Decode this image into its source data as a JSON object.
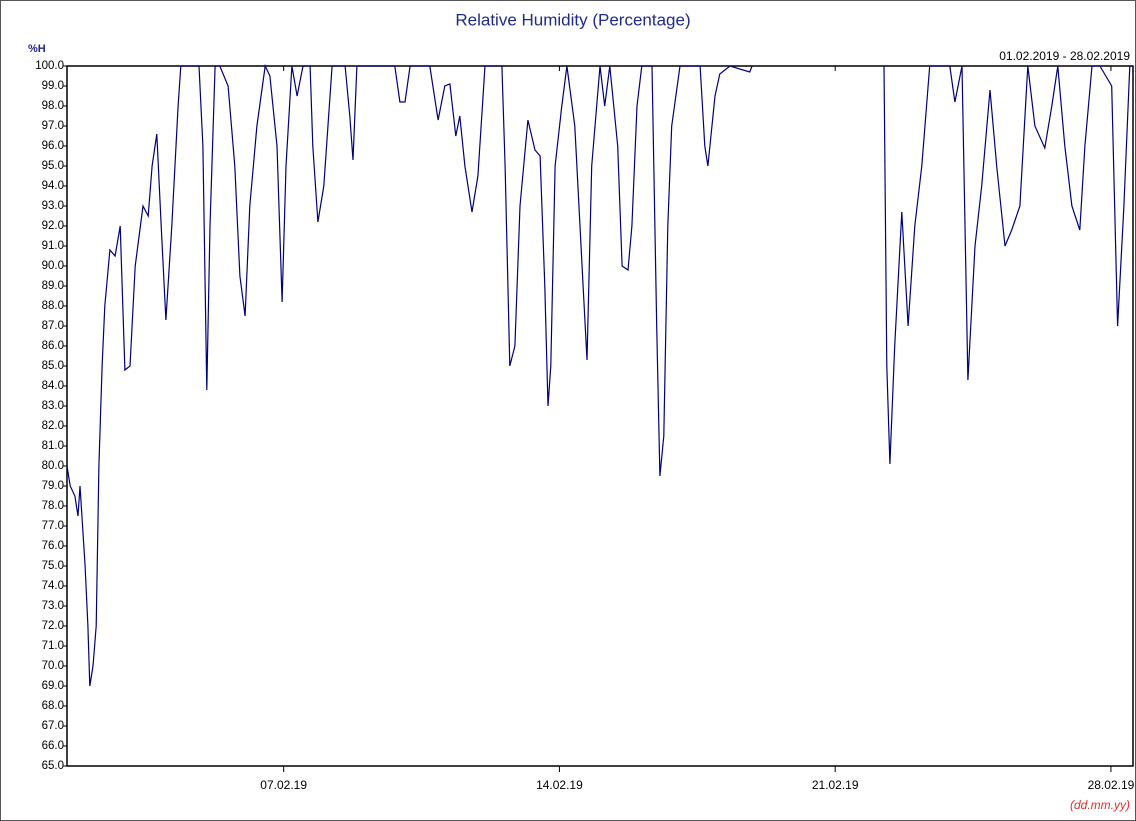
{
  "chart_data": {
    "type": "line",
    "title": "Relative Humidity (Percentage)",
    "y_label": "%H",
    "date_range": "01.02.2019 - 28.02.2019",
    "x_format": "(dd.mm.yy)",
    "color": "#00007f",
    "xlim": [
      1.5,
      28.56
    ],
    "xticks": [
      {
        "value": 7,
        "label": "07.02.19"
      },
      {
        "value": 14,
        "label": "14.02.19"
      },
      {
        "value": 21,
        "label": "21.02.19"
      },
      {
        "value": 28,
        "label": "28.02.19"
      }
    ],
    "ylim": [
      65,
      100
    ],
    "yticks": [
      {
        "value": 65,
        "label": "65.0"
      },
      {
        "value": 66,
        "label": "66.0"
      },
      {
        "value": 67,
        "label": "67.0"
      },
      {
        "value": 68,
        "label": "68.0"
      },
      {
        "value": 69,
        "label": "69.0"
      },
      {
        "value": 70,
        "label": "70.0"
      },
      {
        "value": 71,
        "label": "71.0"
      },
      {
        "value": 72,
        "label": "72.0"
      },
      {
        "value": 73,
        "label": "73.0"
      },
      {
        "value": 74,
        "label": "74.0"
      },
      {
        "value": 75,
        "label": "75.0"
      },
      {
        "value": 76,
        "label": "76.0"
      },
      {
        "value": 77,
        "label": "77.0"
      },
      {
        "value": 78,
        "label": "78.0"
      },
      {
        "value": 79,
        "label": "79.0"
      },
      {
        "value": 80,
        "label": "80.0"
      },
      {
        "value": 81,
        "label": "81.0"
      },
      {
        "value": 82,
        "label": "82.0"
      },
      {
        "value": 83,
        "label": "83.0"
      },
      {
        "value": 84,
        "label": "84.0"
      },
      {
        "value": 85,
        "label": "85.0"
      },
      {
        "value": 86,
        "label": "86.0"
      },
      {
        "value": 87,
        "label": "87.0"
      },
      {
        "value": 88,
        "label": "88.0"
      },
      {
        "value": 89,
        "label": "89.0"
      },
      {
        "value": 90,
        "label": "90.0"
      },
      {
        "value": 91,
        "label": "91.0"
      },
      {
        "value": 92,
        "label": "92.0"
      },
      {
        "value": 93,
        "label": "93.0"
      },
      {
        "value": 94,
        "label": "94.0"
      },
      {
        "value": 95,
        "label": "95.0"
      },
      {
        "value": 96,
        "label": "96.0"
      },
      {
        "value": 97,
        "label": "97.0"
      },
      {
        "value": 98,
        "label": "98.0"
      },
      {
        "value": 99,
        "label": "99.0"
      },
      {
        "value": 100,
        "label": "100.0"
      }
    ],
    "x": [
      1.5,
      1.58,
      1.7,
      1.78,
      1.83,
      1.96,
      2.03,
      2.08,
      2.16,
      2.24,
      2.31,
      2.39,
      2.46,
      2.59,
      2.72,
      2.85,
      2.97,
      3.1,
      3.23,
      3.43,
      3.56,
      3.66,
      3.78,
      3.89,
      4.01,
      4.16,
      4.32,
      4.39,
      4.85,
      4.95,
      5.05,
      5.13,
      5.26,
      5.38,
      5.59,
      5.76,
      5.89,
      6.02,
      6.14,
      6.32,
      6.53,
      6.65,
      6.83,
      6.96,
      7.06,
      7.21,
      7.34,
      7.49,
      7.67,
      7.74,
      7.87,
      8.02,
      8.23,
      8.56,
      8.68,
      8.76,
      8.86,
      9.82,
      9.95,
      10.08,
      10.21,
      10.71,
      10.92,
      11.09,
      11.22,
      11.37,
      11.47,
      11.6,
      11.78,
      11.93,
      12.11,
      12.54,
      12.62,
      12.74,
      12.87,
      13.0,
      13.2,
      13.38,
      13.51,
      13.63,
      13.71,
      13.78,
      13.89,
      14.06,
      14.19,
      14.39,
      14.6,
      14.7,
      14.82,
      15.03,
      15.15,
      15.28,
      15.48,
      15.59,
      15.74,
      15.84,
      15.97,
      16.09,
      16.35,
      16.47,
      16.55,
      16.65,
      16.75,
      16.85,
      17.06,
      17.57,
      17.69,
      17.77,
      17.95,
      18.07,
      18.33,
      18.83,
      18.89,
      19.5,
      22.24,
      22.31,
      22.39,
      22.51,
      22.69,
      22.85,
      23.02,
      23.2,
      23.4,
      23.91,
      24.04,
      24.22,
      24.37,
      24.55,
      24.72,
      24.93,
      25.1,
      25.31,
      25.48,
      25.69,
      25.89,
      26.07,
      26.32,
      26.5,
      26.65,
      26.83,
      27.01,
      27.21,
      27.34,
      27.52,
      27.72,
      28.02,
      28.17,
      28.33,
      28.48,
      28.56
    ],
    "values": [
      80,
      79,
      78.5,
      77.5,
      79,
      75,
      72,
      69,
      70,
      72,
      80,
      85,
      88,
      90.8,
      90.5,
      92,
      84.8,
      85,
      90,
      93,
      92.5,
      95,
      96.6,
      92,
      87.3,
      92,
      98,
      100,
      100,
      96,
      83.8,
      92,
      100,
      100,
      99,
      95,
      89.5,
      87.5,
      93,
      97,
      100,
      99.5,
      96,
      88.2,
      95,
      100,
      98.5,
      100,
      100,
      96,
      92.2,
      94,
      100,
      100,
      97.5,
      95.3,
      100,
      100,
      98.2,
      98.2,
      100,
      100,
      97.3,
      99,
      99.1,
      96.5,
      97.5,
      95,
      92.7,
      94.5,
      100,
      100,
      95,
      85,
      86,
      93,
      97.3,
      95.8,
      95.5,
      89,
      83,
      85,
      95,
      98,
      100,
      97,
      89,
      85.3,
      95,
      100,
      98,
      100,
      96,
      90,
      89.8,
      92,
      98,
      100,
      100,
      87,
      79.5,
      81.5,
      92,
      97,
      100,
      100,
      96,
      95,
      98.5,
      99.6,
      100,
      99.7,
      100,
      null,
      100,
      85,
      80.1,
      86,
      92.7,
      87,
      92,
      95,
      100,
      100,
      98.2,
      100,
      84.3,
      91,
      94,
      98.8,
      95,
      91,
      91.8,
      93,
      100,
      97,
      95.9,
      98,
      100,
      96,
      93,
      91.8,
      96,
      100,
      100,
      99,
      87,
      93,
      100,
      100
    ]
  }
}
